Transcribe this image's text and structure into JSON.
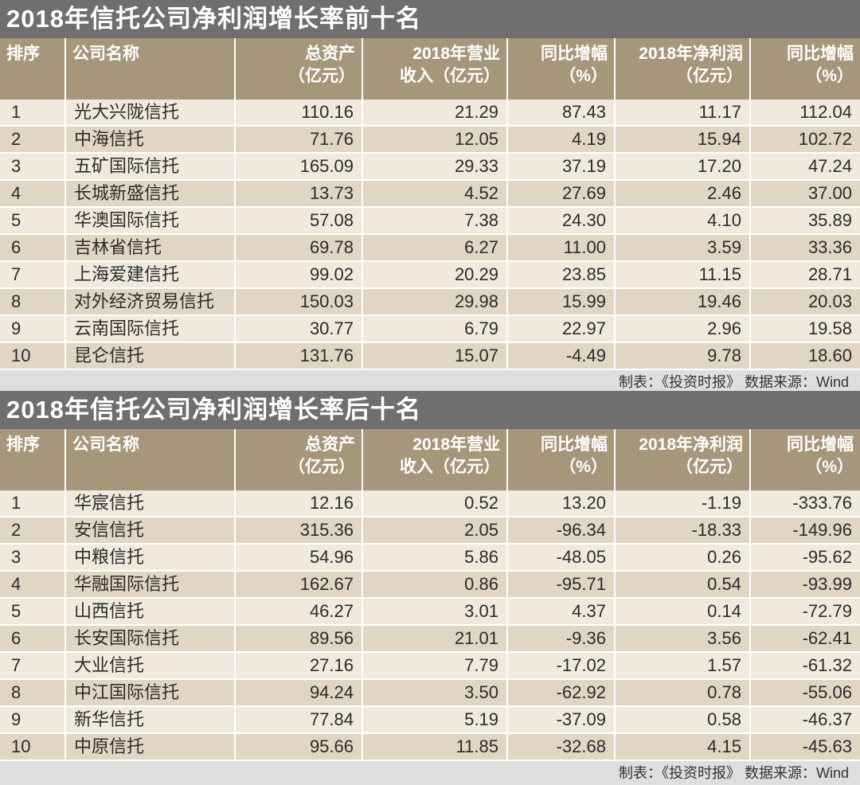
{
  "headers": {
    "rank": "排序",
    "name": "公司名称",
    "assets": [
      "总资产",
      "（亿元）"
    ],
    "revenue": [
      "2018年营业",
      "收入（亿元）"
    ],
    "revenue_yoy": [
      "同比增幅",
      "（%）"
    ],
    "net_profit": [
      "2018年净利润",
      "（亿元）"
    ],
    "profit_yoy": [
      "同比增幅",
      "（%）"
    ]
  },
  "top": {
    "title": "2018年信托公司净利润增长率前十名",
    "footer": "制表：《投资时报》 数据来源：Wind",
    "rows": [
      {
        "rank": "1",
        "name": "光大兴陇信托",
        "assets": "110.16",
        "revenue": "21.29",
        "revenue_yoy": "87.43",
        "net_profit": "11.17",
        "profit_yoy": "112.04"
      },
      {
        "rank": "2",
        "name": "中海信托",
        "assets": "71.76",
        "revenue": "12.05",
        "revenue_yoy": "4.19",
        "net_profit": "15.94",
        "profit_yoy": "102.72"
      },
      {
        "rank": "3",
        "name": "五矿国际信托",
        "assets": "165.09",
        "revenue": "29.33",
        "revenue_yoy": "37.19",
        "net_profit": "17.20",
        "profit_yoy": "47.24"
      },
      {
        "rank": "4",
        "name": "长城新盛信托",
        "assets": "13.73",
        "revenue": "4.52",
        "revenue_yoy": "27.69",
        "net_profit": "2.46",
        "profit_yoy": "37.00"
      },
      {
        "rank": "5",
        "name": "华澳国际信托",
        "assets": "57.08",
        "revenue": "7.38",
        "revenue_yoy": "24.30",
        "net_profit": "4.10",
        "profit_yoy": "35.89"
      },
      {
        "rank": "6",
        "name": "吉林省信托",
        "assets": "69.78",
        "revenue": "6.27",
        "revenue_yoy": "11.00",
        "net_profit": "3.59",
        "profit_yoy": "33.36"
      },
      {
        "rank": "7",
        "name": "上海爱建信托",
        "assets": "99.02",
        "revenue": "20.29",
        "revenue_yoy": "23.85",
        "net_profit": "11.15",
        "profit_yoy": "28.71"
      },
      {
        "rank": "8",
        "name": "对外经济贸易信托",
        "assets": "150.03",
        "revenue": "29.98",
        "revenue_yoy": "15.99",
        "net_profit": "19.46",
        "profit_yoy": "20.03"
      },
      {
        "rank": "9",
        "name": "云南国际信托",
        "assets": "30.77",
        "revenue": "6.79",
        "revenue_yoy": "22.97",
        "net_profit": "2.96",
        "profit_yoy": "19.58"
      },
      {
        "rank": "10",
        "name": "昆仑信托",
        "assets": "131.76",
        "revenue": "15.07",
        "revenue_yoy": "-4.49",
        "net_profit": "9.78",
        "profit_yoy": "18.60"
      }
    ]
  },
  "bottom": {
    "title": "2018年信托公司净利润增长率后十名",
    "footer": "制表：《投资时报》 数据来源：Wind",
    "rows": [
      {
        "rank": "1",
        "name": "华宸信托",
        "assets": "12.16",
        "revenue": "0.52",
        "revenue_yoy": "13.20",
        "net_profit": "-1.19",
        "profit_yoy": "-333.76"
      },
      {
        "rank": "2",
        "name": "安信信托",
        "assets": "315.36",
        "revenue": "2.05",
        "revenue_yoy": "-96.34",
        "net_profit": "-18.33",
        "profit_yoy": "-149.96"
      },
      {
        "rank": "3",
        "name": "中粮信托",
        "assets": "54.96",
        "revenue": "5.86",
        "revenue_yoy": "-48.05",
        "net_profit": "0.26",
        "profit_yoy": "-95.62"
      },
      {
        "rank": "4",
        "name": "华融国际信托",
        "assets": "162.67",
        "revenue": "0.86",
        "revenue_yoy": "-95.71",
        "net_profit": "0.54",
        "profit_yoy": "-93.99"
      },
      {
        "rank": "5",
        "name": "山西信托",
        "assets": "46.27",
        "revenue": "3.01",
        "revenue_yoy": "4.37",
        "net_profit": "0.14",
        "profit_yoy": "-72.79"
      },
      {
        "rank": "6",
        "name": "长安国际信托",
        "assets": "89.56",
        "revenue": "21.01",
        "revenue_yoy": "-9.36",
        "net_profit": "3.56",
        "profit_yoy": "-62.41"
      },
      {
        "rank": "7",
        "name": "大业信托",
        "assets": "27.16",
        "revenue": "7.79",
        "revenue_yoy": "-17.02",
        "net_profit": "1.57",
        "profit_yoy": "-61.32"
      },
      {
        "rank": "8",
        "name": "中江国际信托",
        "assets": "94.24",
        "revenue": "3.50",
        "revenue_yoy": "-62.92",
        "net_profit": "0.78",
        "profit_yoy": "-55.06"
      },
      {
        "rank": "9",
        "name": "新华信托",
        "assets": "77.84",
        "revenue": "5.19",
        "revenue_yoy": "-37.09",
        "net_profit": "0.58",
        "profit_yoy": "-46.37"
      },
      {
        "rank": "10",
        "name": "中原信托",
        "assets": "95.66",
        "revenue": "11.85",
        "revenue_yoy": "-32.68",
        "net_profit": "4.15",
        "profit_yoy": "-45.63"
      }
    ]
  }
}
